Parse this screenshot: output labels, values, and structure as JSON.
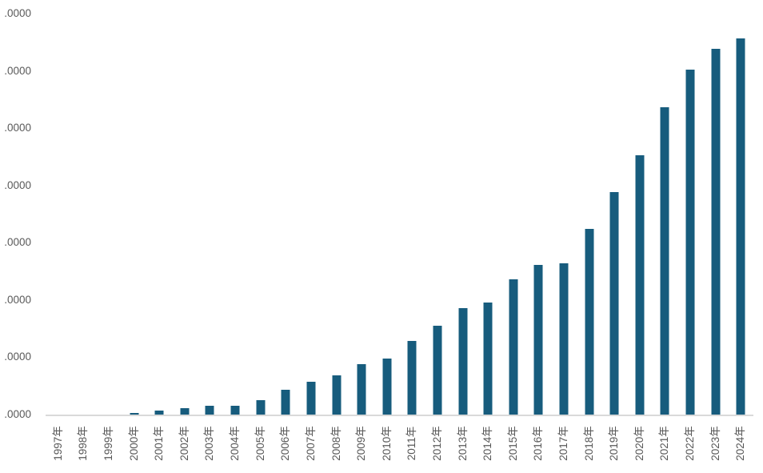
{
  "chart_data": {
    "type": "bar",
    "title": "",
    "xlabel": "",
    "ylabel": "",
    "legend": "none",
    "gridlines": false,
    "categories": [
      "1997年",
      "1998年",
      "1999年",
      "2000年",
      "2001年",
      "2002年",
      "2003年",
      "2004年",
      "2005年",
      "2006年",
      "2007年",
      "2008年",
      "2009年",
      "2010年",
      "2011年",
      "2012年",
      "2013年",
      "2014年",
      "2015年",
      "2016年",
      "2017年",
      "2018年",
      "2019年",
      "2020年",
      "2021年",
      "2022年",
      "2023年",
      "2024年"
    ],
    "values": [
      0,
      0,
      0,
      0.035,
      0.07,
      0.11,
      0.15,
      0.16,
      0.25,
      0.43,
      0.575,
      0.68,
      0.88,
      0.985,
      1.285,
      1.55,
      1.855,
      1.96,
      2.37,
      2.615,
      2.645,
      3.25,
      3.89,
      4.525,
      5.37,
      6.03,
      6.39,
      6.58
    ],
    "ylim": [
      0,
      7
    ],
    "y_axis": {
      "tick_labels": [
        ".0000",
        ".0000",
        ".0000",
        ".0000",
        ".0000",
        ".0000",
        ".0000",
        ".0000"
      ],
      "note": "Integer part of each y tick value is clipped off the left edge of the screenshot; values above are estimated in gridline units (1 unit per tick step)."
    }
  },
  "colors": {
    "bar": "#175C7D",
    "axis_line": "#D9D9D9",
    "tick_text": "#595959",
    "background": "#FFFFFF"
  }
}
